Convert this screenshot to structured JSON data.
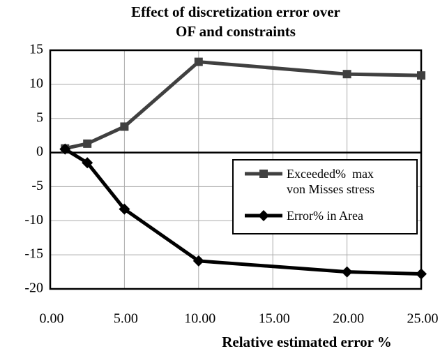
{
  "chart_data": {
    "type": "line",
    "title": [
      "Effect of discretization error over",
      "OF and constraints"
    ],
    "x_label": "Relative estimated error %",
    "xlim": [
      0,
      25
    ],
    "xticks": [
      {
        "value": 0,
        "label": "0.00"
      },
      {
        "value": 5,
        "label": "5.00"
      },
      {
        "value": 10,
        "label": "10.00"
      },
      {
        "value": 15,
        "label": "15.00"
      },
      {
        "value": 20,
        "label": "20.00"
      },
      {
        "value": 25,
        "label": "25.00"
      }
    ],
    "ylim": [
      -20,
      15
    ],
    "yticks": [
      15,
      10,
      5,
      0,
      -5,
      -10,
      -15,
      -20
    ],
    "grid": true,
    "legend": "right",
    "series": [
      {
        "name": "Exceeded%  max von Misses stress",
        "color": "#404040",
        "marker": "square",
        "x": [
          1,
          2.5,
          5,
          10,
          20,
          25
        ],
        "values": [
          0.6,
          1.3,
          3.8,
          13.3,
          11.5,
          11.3
        ]
      },
      {
        "name": "Error% in Area",
        "color": "#000000",
        "marker": "diamond",
        "x": [
          1,
          2.5,
          5,
          10,
          20,
          25
        ],
        "values": [
          0.5,
          -1.5,
          -8.3,
          -15.9,
          -17.5,
          -17.8
        ]
      }
    ]
  }
}
